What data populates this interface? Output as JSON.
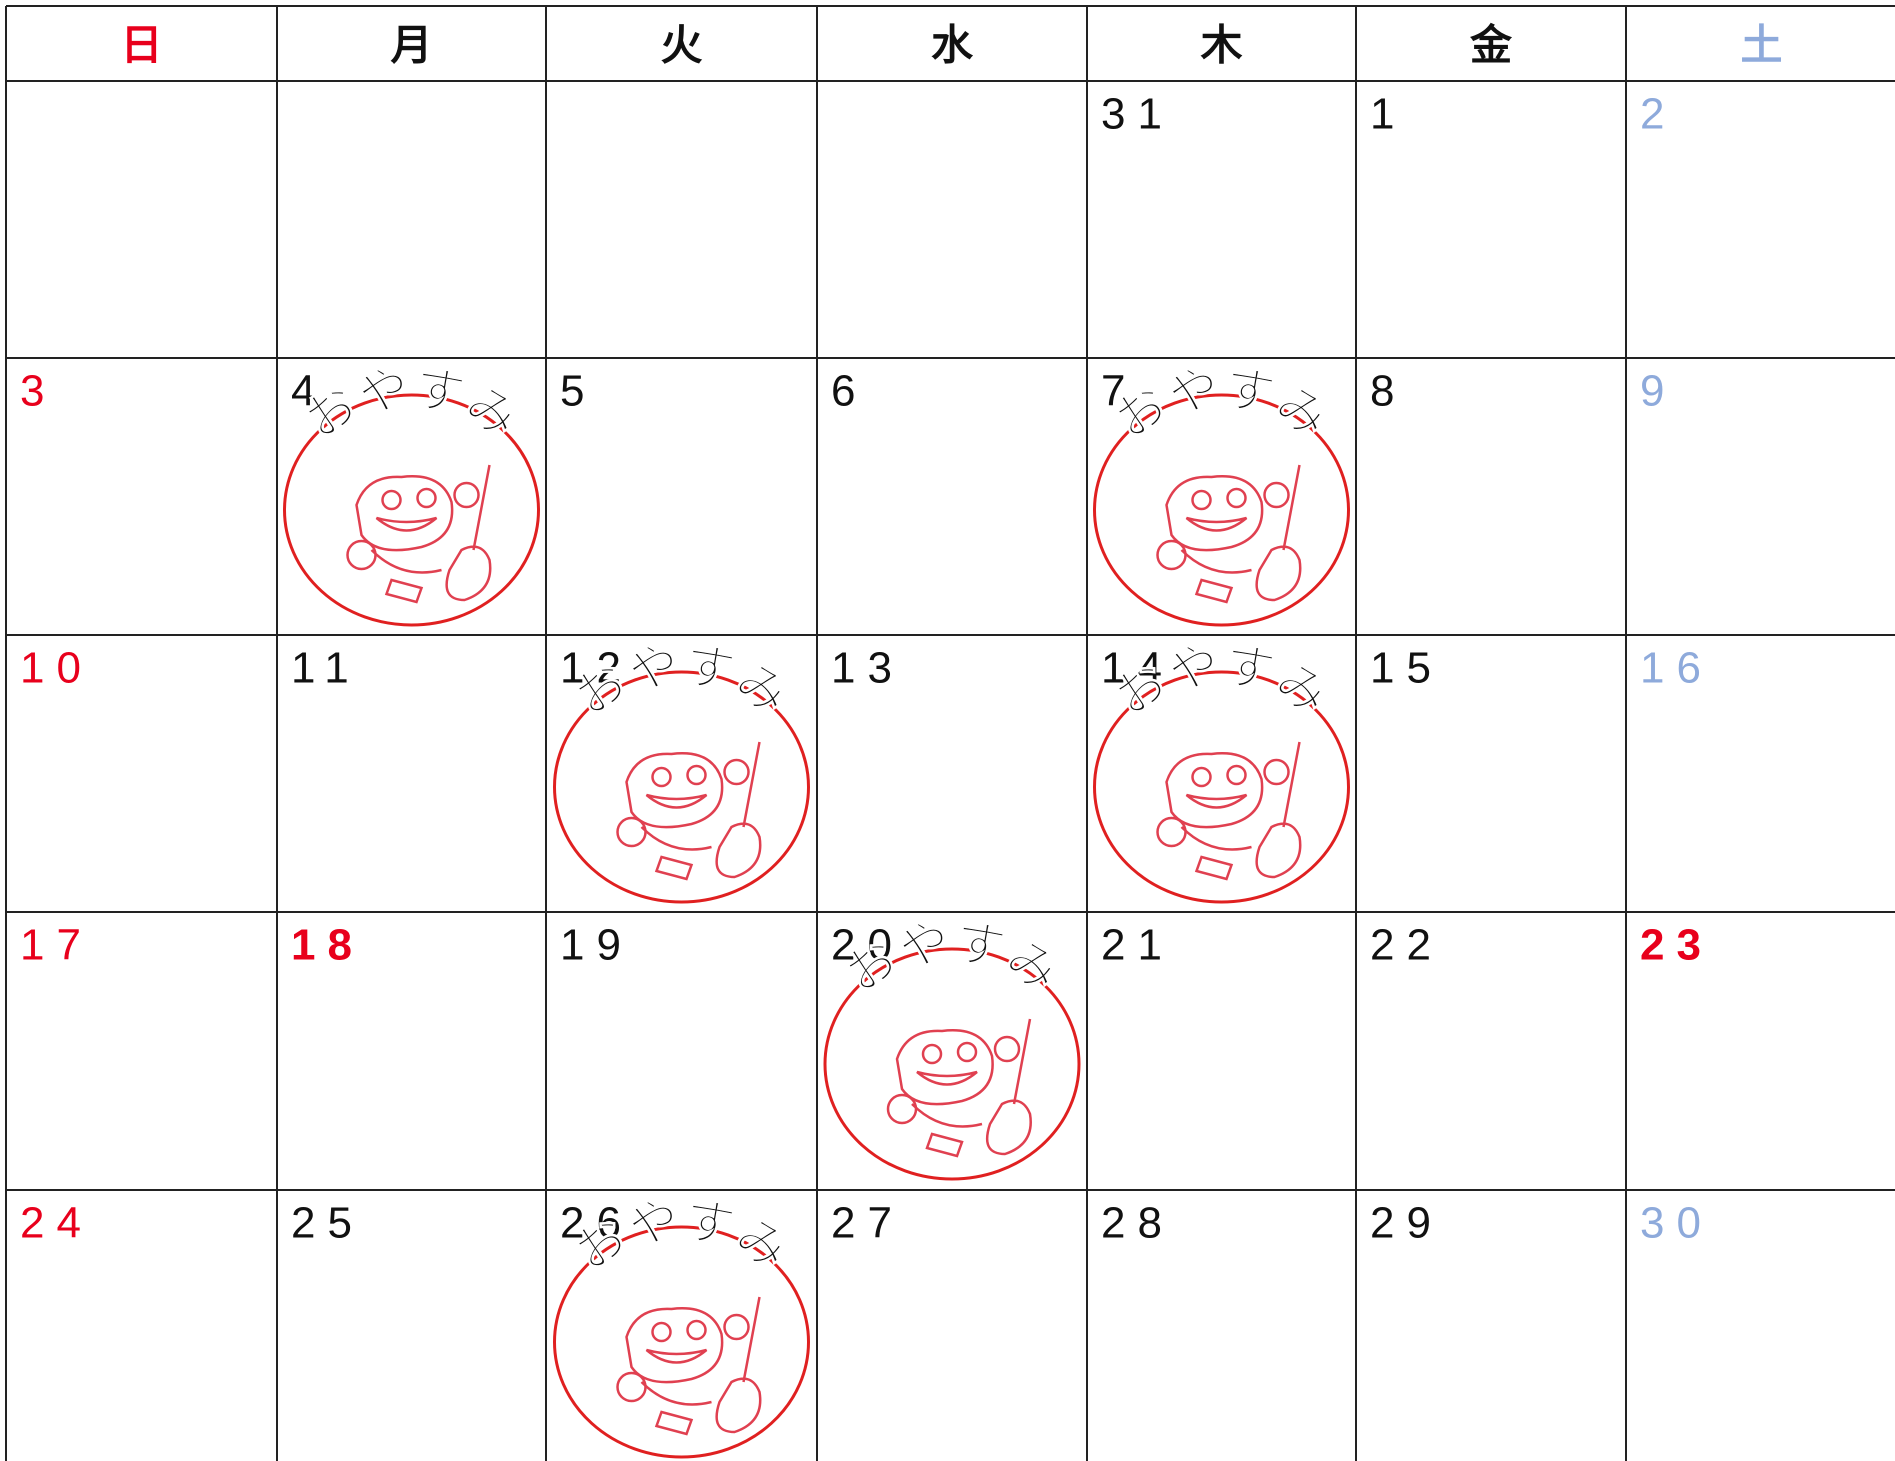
{
  "weekdays": [
    {
      "label": "日",
      "color": "#e8001c"
    },
    {
      "label": "月"
    },
    {
      "label": "火"
    },
    {
      "label": "水"
    },
    {
      "label": "木"
    },
    {
      "label": "金"
    },
    {
      "label": "土",
      "color": "#8eaadb"
    }
  ],
  "weeks": [
    [
      null,
      null,
      null,
      null,
      {
        "day": "31"
      },
      {
        "day": "1"
      },
      {
        "day": "2",
        "color": "#8eaadb"
      }
    ],
    [
      {
        "day": "3",
        "color": "#e8001c"
      },
      {
        "day": "4",
        "stamp": "おやすみ"
      },
      {
        "day": "5"
      },
      {
        "day": "6"
      },
      {
        "day": "7",
        "stamp": "おやすみ"
      },
      {
        "day": "8"
      },
      {
        "day": "9",
        "color": "#8eaadb"
      }
    ],
    [
      {
        "day": "10",
        "color": "#e8001c"
      },
      {
        "day": "11"
      },
      {
        "day": "12",
        "stamp": "おやすみ"
      },
      {
        "day": "13"
      },
      {
        "day": "14",
        "stamp": "おやすみ"
      },
      {
        "day": "15"
      },
      {
        "day": "16",
        "color": "#8eaadb"
      }
    ],
    [
      {
        "day": "17",
        "color": "#e8001c"
      },
      {
        "day": "18",
        "color": "#e8001c"
      },
      {
        "day": "19"
      },
      {
        "day": "20",
        "stamp": "おやすみ"
      },
      {
        "day": "21"
      },
      {
        "day": "22"
      },
      {
        "day": "23",
        "color": "#e8001c"
      }
    ],
    [
      {
        "day": "24",
        "color": "#e8001c"
      },
      {
        "day": "25"
      },
      {
        "day": "26",
        "stamp": "おやすみ"
      },
      {
        "day": "27"
      },
      {
        "day": "28"
      },
      {
        "day": "29"
      },
      {
        "day": "30",
        "color": "#8eaadb"
      }
    ]
  ]
}
